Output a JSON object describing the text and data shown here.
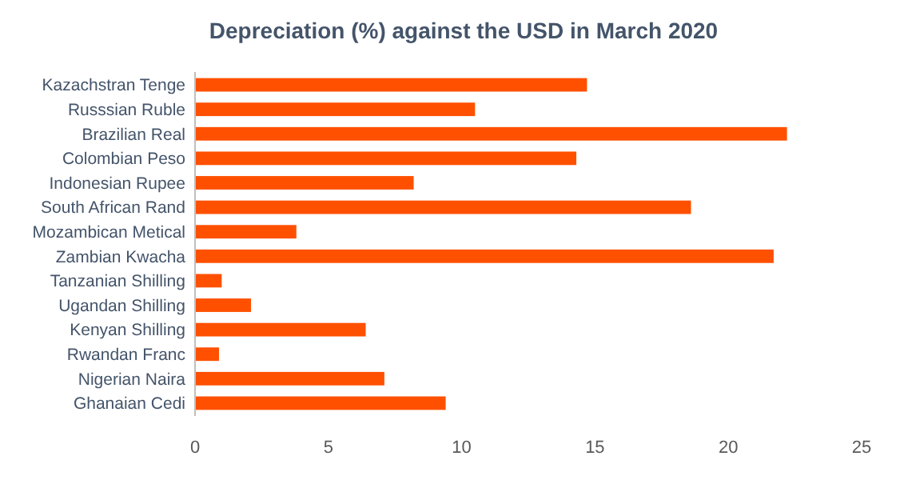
{
  "chart_data": {
    "type": "bar",
    "orientation": "horizontal",
    "title": "Depreciation (%) against the USD in March 2020",
    "categories": [
      "Kazachstran Tenge",
      "Russsian Ruble",
      "Brazilian Real",
      "Colombian Peso",
      "Indonesian Rupee",
      "South African Rand",
      "Mozambican Metical",
      "Zambian Kwacha",
      "Tanzanian Shilling",
      "Ugandan Shilling",
      "Kenyan Shilling",
      "Rwandan Franc",
      "Nigerian Naira",
      "Ghanaian Cedi"
    ],
    "values": [
      14.7,
      10.5,
      22.2,
      14.3,
      8.2,
      18.6,
      3.8,
      21.7,
      1.0,
      2.1,
      6.4,
      0.9,
      7.1,
      9.4
    ],
    "color": "#ff5000",
    "xlim": [
      0,
      25
    ],
    "xticks": [
      0,
      5,
      10,
      15,
      20,
      25
    ],
    "grid": false
  }
}
